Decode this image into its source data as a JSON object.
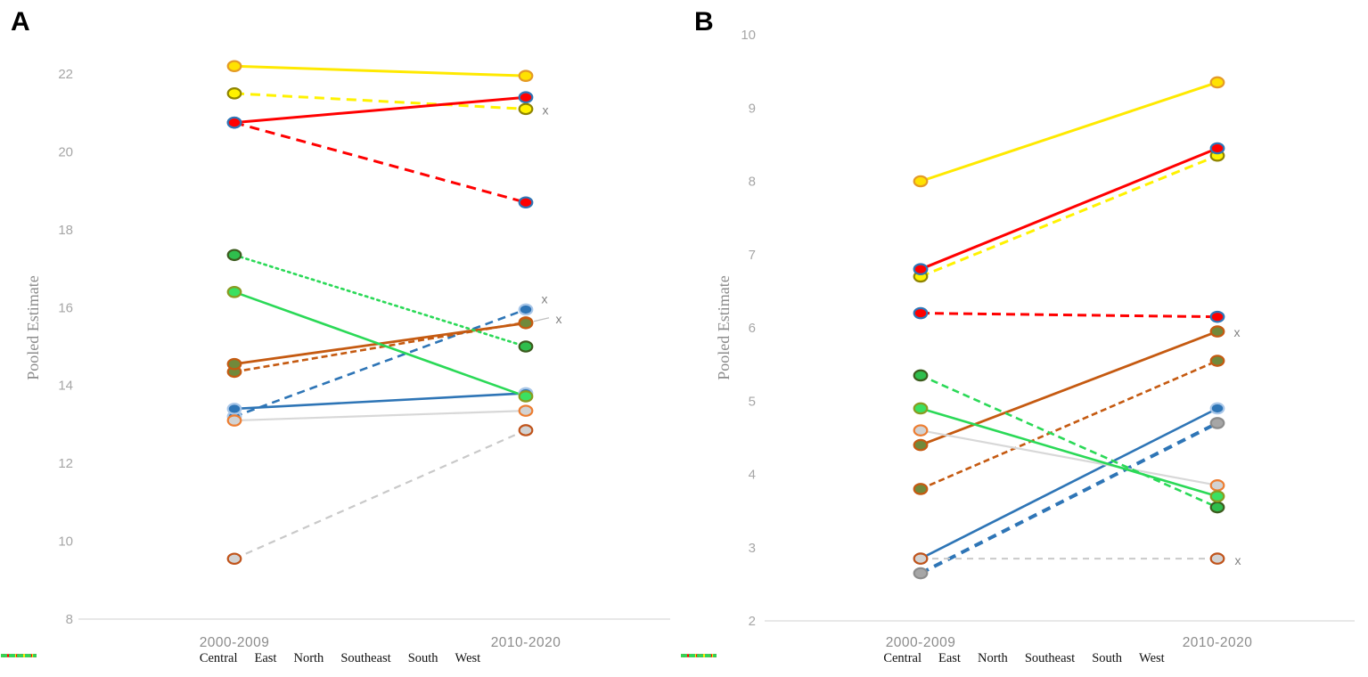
{
  "figure_background": "#ffffff",
  "text_colors": {
    "panel_letter": "#000000",
    "axis_ticks": "#a6a6a6",
    "category_labels": "#8c8c8c",
    "y_axis_title": "#8c8c8c",
    "x_flag": "#808080",
    "axis_line": "#d9d9d9",
    "leader_line": "#bfbfbf"
  },
  "chart_data": [
    {
      "type": "line",
      "panel_label": "A",
      "title": "",
      "xlabel": "",
      "ylabel": "Pooled Estimate",
      "categories": [
        "2000-2009",
        "2010-2020"
      ],
      "ylim": [
        8,
        22
      ],
      "yticks": [
        22,
        20,
        18,
        16,
        14,
        12,
        10,
        8
      ],
      "grid": false,
      "legend_position": "bottom",
      "series": [
        {
          "region": "North",
          "style": "dashed",
          "values": [
            13.2,
            15.95
          ],
          "color": "#2E75B6",
          "width": 2.6,
          "dash": "9,6",
          "marker_fill": "#2E75B6",
          "marker_edge": "#A8C6E8",
          "flag": {
            "text": "x",
            "dx": 21,
            "dy": -12
          }
        },
        {
          "region": "North",
          "style": "solid",
          "values": [
            13.4,
            13.8
          ],
          "color": "#2E75B6",
          "width": 2.6,
          "dash": "",
          "marker_fill": "#2E75B6",
          "marker_edge": "#A8C6E8"
        },
        {
          "region": "Central",
          "style": "dashed",
          "values": [
            14.35,
            15.62
          ],
          "color": "#C55A11",
          "width": 2.6,
          "dash": "7,4",
          "marker_fill": "#71893B",
          "marker_edge": "#C55A11"
        },
        {
          "region": "Central",
          "style": "solid",
          "values": [
            14.55,
            15.6
          ],
          "color": "#C55A11",
          "width": 2.8,
          "dash": "",
          "marker_fill": "#71893B",
          "marker_edge": "#C55A11",
          "flag": {
            "text": "x",
            "dx": 37,
            "dy": -5,
            "leader": true
          }
        },
        {
          "region": "East",
          "style": "dashed",
          "values": [
            9.55,
            12.85
          ],
          "color": "#C9C9C9",
          "width": 2.2,
          "dash": "8,6",
          "marker_fill": "#D2D2D2",
          "marker_edge": "#C0531A"
        },
        {
          "region": "East",
          "style": "solid",
          "values": [
            13.1,
            13.35
          ],
          "color": "#D8D8D8",
          "width": 2.2,
          "dash": "",
          "marker_fill": "#D2D2D2",
          "marker_edge": "#ED7D31"
        },
        {
          "region": "West",
          "style": "dashed",
          "values": [
            17.35,
            15.0
          ],
          "color": "#2BD957",
          "width": 2.6,
          "dash": "2.5,4.5",
          "marker_fill": "#2FBE4D",
          "marker_edge": "#3C5B1E"
        },
        {
          "region": "West",
          "style": "solid",
          "values": [
            16.4,
            13.72
          ],
          "color": "#2BD957",
          "width": 2.6,
          "dash": "",
          "marker_fill": "#3BE061",
          "marker_edge": "#8A9A20"
        },
        {
          "region": "South",
          "style": "dashed",
          "values": [
            21.5,
            21.1
          ],
          "color": "#FFF200",
          "width": 3,
          "dash": "11,7",
          "marker_fill": "#FFF200",
          "marker_edge": "#8F8400",
          "flag": {
            "text": "x",
            "dx": 22,
            "dy": 1
          }
        },
        {
          "region": "South",
          "style": "solid",
          "values": [
            22.2,
            21.95
          ],
          "color": "#FFE900",
          "width": 3,
          "dash": "",
          "marker_fill": "#FFE200",
          "marker_edge": "#E49A26"
        },
        {
          "region": "Southeast",
          "style": "dashed",
          "values": [
            20.75,
            18.7
          ],
          "color": "#FF0000",
          "width": 3,
          "dash": "11,7",
          "marker_fill": "#FF0000",
          "marker_edge": "#2E75B6"
        },
        {
          "region": "Southeast",
          "style": "solid",
          "values": [
            20.75,
            21.4
          ],
          "color": "#FF0000",
          "width": 3,
          "dash": "",
          "marker_fill": "#FF0000",
          "marker_edge": "#2E75B6"
        }
      ],
      "legend": [
        {
          "label": "Central",
          "color": "#C55A11",
          "dash": "7,2"
        },
        {
          "label": "East",
          "color": "#BFBFBF",
          "dash": "2,3"
        },
        {
          "label": "North",
          "color": "#2E75B6",
          "dash": "7,2"
        },
        {
          "label": "Southeast",
          "color": "#FF0000",
          "dash": "12,3"
        },
        {
          "label": "South",
          "color": "#FFF200",
          "dash": "2,3"
        },
        {
          "label": "West",
          "color": "#2BD957",
          "dash": "7,2"
        }
      ]
    },
    {
      "type": "line",
      "panel_label": "B",
      "title": "",
      "xlabel": "",
      "ylabel": "Pooled Estimate",
      "categories": [
        "2000-2009",
        "2010-2020"
      ],
      "ylim": [
        2,
        10
      ],
      "yticks": [
        10,
        9,
        8,
        7,
        6,
        5,
        4,
        3,
        2
      ],
      "grid": false,
      "legend_position": "bottom",
      "series": [
        {
          "region": "North",
          "style": "dashed",
          "values": [
            2.65,
            4.7
          ],
          "color": "#2E75B6",
          "width": 4,
          "dash": "10,7",
          "marker_fill": "#A6A6A6",
          "marker_edge": "#8C8C8C"
        },
        {
          "region": "North",
          "style": "solid",
          "values": [
            2.85,
            4.9
          ],
          "color": "#2E75B6",
          "width": 2.6,
          "dash": "",
          "marker_fill": "#2E75B6",
          "marker_edge": "#A8C6E8"
        },
        {
          "region": "Central",
          "style": "dashed",
          "values": [
            3.8,
            5.55
          ],
          "color": "#C55A11",
          "width": 2.6,
          "dash": "7,4",
          "marker_fill": "#71893B",
          "marker_edge": "#C55A11"
        },
        {
          "region": "Central",
          "style": "solid",
          "values": [
            4.4,
            5.95
          ],
          "color": "#C55A11",
          "width": 2.8,
          "dash": "",
          "marker_fill": "#71893B",
          "marker_edge": "#C55A11",
          "flag": {
            "text": "x",
            "dx": 22,
            "dy": 1
          }
        },
        {
          "region": "East",
          "style": "dashed",
          "values": [
            2.85,
            2.85
          ],
          "color": "#C9C9C9",
          "width": 2,
          "dash": "7,6",
          "marker_fill": "#D2D2D2",
          "marker_edge": "#C0531A",
          "flag": {
            "text": "x",
            "dx": 23,
            "dy": 2
          }
        },
        {
          "region": "East",
          "style": "solid",
          "values": [
            4.6,
            3.85
          ],
          "color": "#D8D8D8",
          "width": 2.2,
          "dash": "",
          "marker_fill": "#D2D2D2",
          "marker_edge": "#ED7D31"
        },
        {
          "region": "West",
          "style": "dashed",
          "values": [
            5.35,
            3.55
          ],
          "color": "#2BD957",
          "width": 2.6,
          "dash": "8,5",
          "marker_fill": "#2FBE4D",
          "marker_edge": "#3C5B1E"
        },
        {
          "region": "West",
          "style": "solid",
          "values": [
            4.9,
            3.7
          ],
          "color": "#2BD957",
          "width": 2.6,
          "dash": "",
          "marker_fill": "#3BE061",
          "marker_edge": "#8A9A20"
        },
        {
          "region": "South",
          "style": "dashed",
          "values": [
            6.7,
            8.35
          ],
          "color": "#FFF200",
          "width": 3,
          "dash": "10,6",
          "marker_fill": "#FFF200",
          "marker_edge": "#8F8400"
        },
        {
          "region": "South",
          "style": "solid",
          "values": [
            8.0,
            9.35
          ],
          "color": "#FFE900",
          "width": 3,
          "dash": "",
          "marker_fill": "#FFE200",
          "marker_edge": "#E49A26"
        },
        {
          "region": "Southeast",
          "style": "dashed",
          "values": [
            6.2,
            6.15
          ],
          "color": "#FF0000",
          "width": 3,
          "dash": "10,6",
          "marker_fill": "#FF0000",
          "marker_edge": "#2E75B6"
        },
        {
          "region": "Southeast",
          "style": "solid",
          "values": [
            6.8,
            8.45
          ],
          "color": "#FF0000",
          "width": 3,
          "dash": "",
          "marker_fill": "#FF0000",
          "marker_edge": "#2E75B6"
        }
      ],
      "legend": [
        {
          "label": "Central",
          "color": "#C55A11",
          "dash": "7,2"
        },
        {
          "label": "East",
          "color": "#BFBFBF",
          "dash": "2,3"
        },
        {
          "label": "North",
          "color": "#2E75B6",
          "dash": "7,2"
        },
        {
          "label": "Southeast",
          "color": "#FF0000",
          "dash": "12,3"
        },
        {
          "label": "South",
          "color": "#FFF200",
          "dash": "2,3"
        },
        {
          "label": "West",
          "color": "#2BD957",
          "dash": "7,2"
        }
      ]
    }
  ]
}
